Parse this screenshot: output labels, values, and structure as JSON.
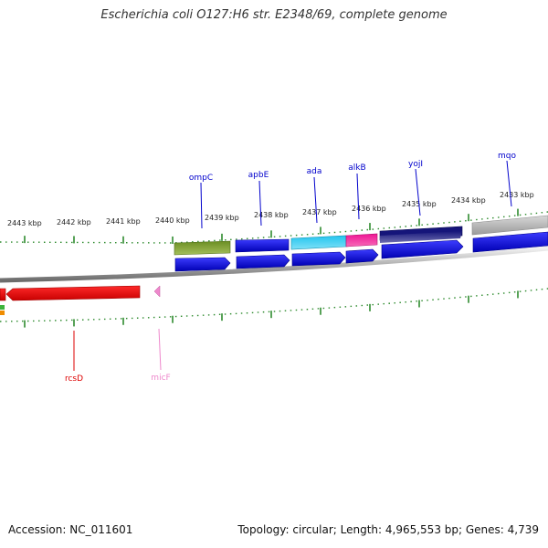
{
  "header": {
    "title": "Escherichia coli O127:H6 str. E2348/69, complete genome"
  },
  "footer": {
    "accession": "Accession: NC_011601",
    "summary": "Topology: circular; Length: 4,965,553 bp; Genes: 4,739"
  },
  "ticks": [
    "2443 kbp",
    "2442 kbp",
    "2441 kbp",
    "2440 kbp",
    "2439 kbp",
    "2438 kbp",
    "2437 kbp",
    "2436 kbp",
    "2435 kbp",
    "2434 kbp",
    "2433 kbp"
  ],
  "gene_labels": {
    "ompC": "ompC",
    "apbE": "apbE",
    "ada": "ada",
    "alkB": "alkB",
    "yojI": "yojI",
    "mqo": "mqo",
    "rcsD": "rcsD",
    "micF": "micF"
  },
  "colors": {
    "forward_gene": "#0000dd",
    "ompC_feature": "#6b8e23",
    "apbE_feature": "#0000dd",
    "ada_feature": "#22c5ee",
    "alkB_feature": "#ee1493",
    "yojI_feature": "#15157a",
    "mqo_feature": "#b4b4b4",
    "rcsD_feature": "#ee0000",
    "micF_feature": "#ee88cc",
    "tick_color": "#2e8b2e",
    "backbone": "#888888"
  }
}
